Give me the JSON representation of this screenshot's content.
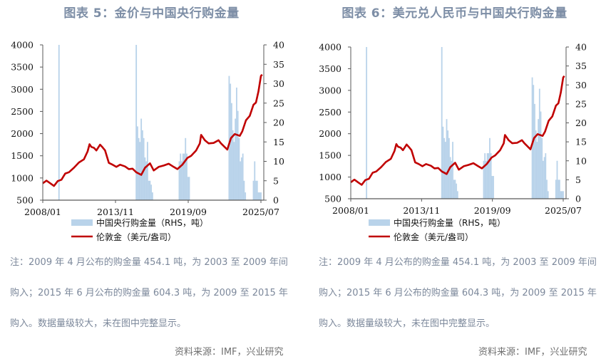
{
  "colors": {
    "title": "#7d8ea6",
    "bar": "#b9d3ea",
    "line": "#c00000",
    "axis": "#595959",
    "note": "#7c889b",
    "source": "#6f6f6f"
  },
  "panels": [
    {
      "title": "图表 5：金价与中国央行购金量",
      "legend": {
        "bar_label": "中国央行购金量（RHS，吨）",
        "line_label": "伦敦金（美元/盎司）"
      },
      "note": "注：2009 年 4 月公布的购金量 454.1 吨，为 2003 至 2009 年间购入；2015 年 6 月公布的购金量 604.3 吨，为 2009 至 2015 年购入。数据量级较大，未在图中完整显示。",
      "source": "资料来源：IMF，兴业研究"
    },
    {
      "title": "图表 6：美元兑人民币与中国央行购金量",
      "legend": {
        "bar_label": "中国央行购金量（RHS，吨）",
        "line_label": "伦敦金（美元/盎司）"
      },
      "note": "注：2009 年 4 月公布的购金量 454.1 吨，为 2003 至 2009 年间购入；2015 年 6 月公布的购金量 604.3 吨，为 2009 至 2015 年购入。数据量级较大，未在图中完整显示。",
      "source": "资料来源：IMF，兴业研究"
    }
  ],
  "chart_data": [
    {
      "type": "bar+line",
      "title": "图表 5：金价与中国央行购金量",
      "xlabel": "",
      "ylabel_left": "伦敦金（美元/盎司）",
      "ylabel_right": "中国央行购金量（RHS，吨）",
      "x_ticks": [
        "2008/01",
        "2013/11",
        "2019/09",
        "2025/07"
      ],
      "xlim": [
        "2008/01",
        "2025/07"
      ],
      "ylim_left": [
        500,
        4000
      ],
      "yticks_left": [
        500,
        1000,
        1500,
        2000,
        2500,
        3000,
        3500,
        4000
      ],
      "ylim_right": [
        0,
        40
      ],
      "yticks_right": [
        0,
        5,
        10,
        15,
        20,
        25,
        30,
        35,
        40
      ],
      "legend_position": "bottom",
      "grid": false,
      "series": [
        {
          "name": "伦敦金（美元/盎司）",
          "type": "line",
          "axis": "left",
          "x": [
            2008.0,
            2008.3,
            2008.6,
            2008.9,
            2009.2,
            2009.5,
            2009.8,
            2010.1,
            2010.5,
            2010.9,
            2011.3,
            2011.6,
            2011.75,
            2011.9,
            2012.1,
            2012.3,
            2012.6,
            2012.8,
            2013.0,
            2013.3,
            2013.6,
            2013.9,
            2014.2,
            2014.6,
            2014.9,
            2015.2,
            2015.5,
            2015.9,
            2016.2,
            2016.6,
            2016.9,
            2017.3,
            2017.7,
            2018.1,
            2018.5,
            2018.8,
            2019.2,
            2019.6,
            2019.9,
            2020.3,
            2020.6,
            2020.7,
            2021.0,
            2021.3,
            2021.7,
            2022.1,
            2022.3,
            2022.8,
            2023.1,
            2023.4,
            2023.8,
            2024.0,
            2024.3,
            2024.6,
            2024.9,
            2025.1,
            2025.3,
            2025.5,
            2025.6
          ],
          "values": [
            880,
            940,
            880,
            820,
            930,
            960,
            1100,
            1130,
            1230,
            1350,
            1420,
            1600,
            1760,
            1700,
            1680,
            1620,
            1750,
            1690,
            1620,
            1340,
            1300,
            1250,
            1300,
            1260,
            1200,
            1210,
            1130,
            1070,
            1230,
            1330,
            1170,
            1250,
            1280,
            1320,
            1250,
            1200,
            1300,
            1450,
            1500,
            1620,
            1780,
            1970,
            1850,
            1780,
            1790,
            1850,
            1780,
            1640,
            1900,
            1990,
            1950,
            2050,
            2300,
            2400,
            2650,
            2700,
            2950,
            3300,
            3330
          ]
        },
        {
          "name": "中国央行购金量（RHS，吨）",
          "type": "bar",
          "axis": "right",
          "note": "2009/04 value 454.1 and 2015/06 value 604.3 exceed axis range (clipped at 40)",
          "x": [
            2009.3,
            2015.5,
            2015.6,
            2015.7,
            2015.8,
            2015.9,
            2016.0,
            2016.1,
            2016.2,
            2016.3,
            2016.4,
            2016.5,
            2016.6,
            2016.7,
            2016.8,
            2016.9,
            2018.95,
            2019.05,
            2019.15,
            2019.25,
            2019.35,
            2019.45,
            2019.55,
            2019.65,
            2019.75,
            2022.95,
            2023.05,
            2023.15,
            2023.25,
            2023.35,
            2023.45,
            2023.55,
            2023.65,
            2023.75,
            2023.85,
            2023.95,
            2024.05,
            2024.15,
            2024.25,
            2024.35,
            2024.45,
            2024.9,
            2025.0,
            2025.1,
            2025.2,
            2025.3,
            2025.4,
            2025.5
          ],
          "values": [
            40,
            40,
            19,
            16,
            15,
            21,
            18,
            16,
            11,
            10,
            15,
            5,
            5,
            4,
            2,
            0,
            10,
            12,
            10,
            12,
            12,
            16,
            12,
            6,
            6,
            32,
            30,
            25,
            18,
            15,
            21,
            29,
            23,
            16,
            10,
            11,
            12,
            5,
            2,
            0,
            0,
            5,
            10,
            5,
            5,
            2,
            2,
            2
          ]
        }
      ]
    },
    {
      "type": "bar+line",
      "title": "图表 6：美元兑人民币与中国央行购金量",
      "xlabel": "",
      "ylabel_left": "伦敦金（美元/盎司）",
      "ylabel_right": "中国央行购金量（RHS，吨）",
      "x_ticks": [
        "2008/01",
        "2013/11",
        "2019/09",
        "2025/07"
      ],
      "xlim": [
        "2008/01",
        "2025/07"
      ],
      "ylim_left": [
        500,
        4000
      ],
      "yticks_left": [
        500,
        1000,
        1500,
        2000,
        2500,
        3000,
        3500,
        4000
      ],
      "ylim_right": [
        0,
        40
      ],
      "yticks_right": [
        0,
        5,
        10,
        15,
        20,
        25,
        30,
        35,
        40
      ],
      "legend_position": "bottom",
      "grid": false,
      "series_same_as": "chart 5 (identical data rendered)"
    }
  ]
}
